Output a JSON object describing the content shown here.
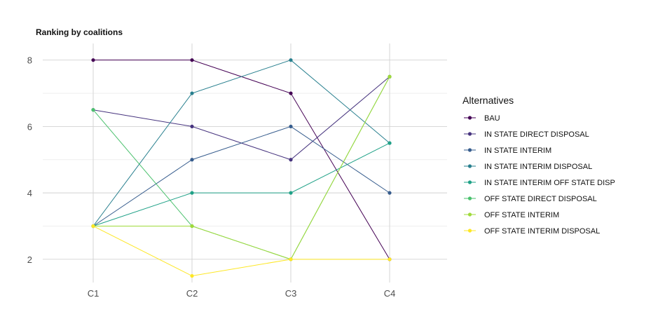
{
  "chart_data": {
    "type": "line",
    "title": "Ranking by coalitions",
    "xlabel": "",
    "ylabel": "",
    "categories": [
      "C1",
      "C2",
      "C3",
      "C4"
    ],
    "ylim": [
      1.3,
      8.5
    ],
    "yticks": [
      2,
      4,
      6,
      8
    ],
    "grid": true,
    "legend_title": "Alternatives",
    "legend_position": "right",
    "series": [
      {
        "name": "BAU",
        "color": "#440154",
        "values": [
          8,
          8,
          7,
          2
        ]
      },
      {
        "name": "IN STATE DIRECT DISPOSAL",
        "color": "#46337E",
        "values": [
          6.5,
          6,
          5,
          7.5
        ]
      },
      {
        "name": "IN STATE INTERIM",
        "color": "#365C8D",
        "values": [
          3,
          5,
          6,
          4
        ]
      },
      {
        "name": "IN STATE INTERIM DISPOSAL",
        "color": "#277F8E",
        "values": [
          3,
          7,
          8,
          5.5
        ]
      },
      {
        "name": "IN STATE INTERIM OFF STATE DISP",
        "color": "#1FA187",
        "values": [
          3,
          4,
          4,
          5.5
        ]
      },
      {
        "name": "OFF STATE DIRECT DISPOSAL",
        "color": "#4AC16D",
        "values": [
          6.5,
          3,
          2,
          7.5
        ]
      },
      {
        "name": "OFF STATE INTERIM",
        "color": "#9FDA3A",
        "values": [
          3,
          3,
          2,
          7.5
        ]
      },
      {
        "name": "OFF STATE INTERIM DISPOSAL",
        "color": "#FDE725",
        "values": [
          3,
          1.5,
          2,
          2
        ]
      }
    ]
  }
}
